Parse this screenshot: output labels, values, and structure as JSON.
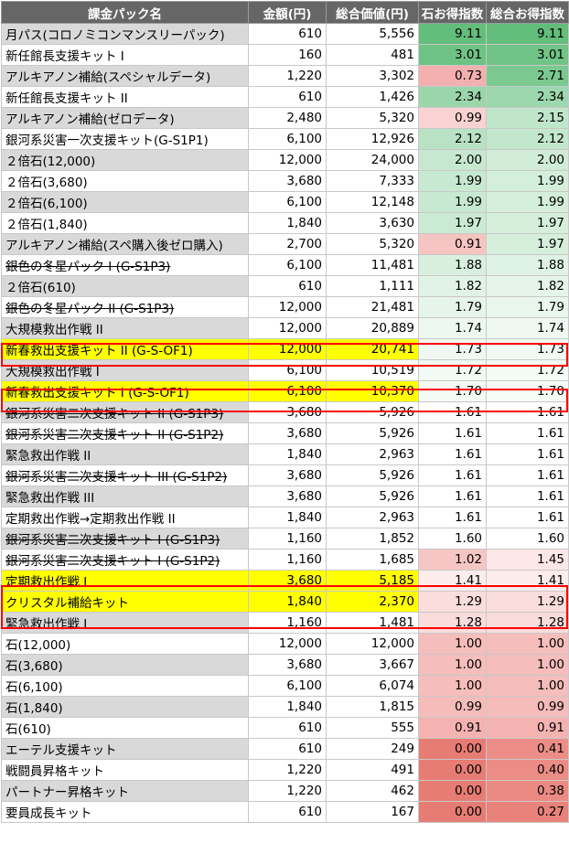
{
  "headers": [
    "課金パック名",
    "金額(円)",
    "総合価値(円)",
    "石お得指数",
    "総合お得指数"
  ],
  "rows": [
    {
      "name": "月パス(コロノミコンマンスリーパック)",
      "price": "610",
      "total": "5,556",
      "stone": "9.11",
      "all": "9.11",
      "shade": "gray",
      "strike": false,
      "highlight": false,
      "stone_color": "#63be7b",
      "all_color": "#63be7b"
    },
    {
      "name": "新任館長支援キット I",
      "price": "160",
      "total": "481",
      "stone": "3.01",
      "all": "3.01",
      "shade": "white",
      "strike": false,
      "highlight": false,
      "stone_color": "#6ec384",
      "all_color": "#6fc486"
    },
    {
      "name": "アルキアノン補給(スペシャルデータ)",
      "price": "1,220",
      "total": "3,302",
      "stone": "0.73",
      "all": "2.71",
      "shade": "gray",
      "strike": false,
      "highlight": false,
      "stone_color": "#f3b0ae",
      "all_color": "#7bc991"
    },
    {
      "name": "新任館長支援キット II",
      "price": "610",
      "total": "1,426",
      "stone": "2.34",
      "all": "2.34",
      "shade": "white",
      "strike": false,
      "highlight": false,
      "stone_color": "#9bd6ab",
      "all_color": "#9dd7ad"
    },
    {
      "name": "アルキアノン補給(ゼロデータ)",
      "price": "2,480",
      "total": "5,320",
      "stone": "0.99",
      "all": "2.15",
      "shade": "gray",
      "strike": false,
      "highlight": false,
      "stone_color": "#f8d3d1",
      "all_color": "#bfe6c9"
    },
    {
      "name": "銀河系災害一次支援キット(G-S1P1)",
      "price": "6,100",
      "total": "12,926",
      "stone": "2.12",
      "all": "2.12",
      "shade": "white",
      "strike": false,
      "highlight": false,
      "stone_color": "#b8e2c3",
      "all_color": "#c3e7cc"
    },
    {
      "name": "２倍石(12,000)",
      "price": "12,000",
      "total": "24,000",
      "stone": "2.00",
      "all": "2.00",
      "shade": "gray",
      "strike": false,
      "highlight": false,
      "stone_color": "#c6e8cf",
      "all_color": "#d0ecd7"
    },
    {
      "name": "２倍石(3,680)",
      "price": "3,680",
      "total": "7,333",
      "stone": "1.99",
      "all": "1.99",
      "shade": "white",
      "strike": false,
      "highlight": false,
      "stone_color": "#c8e9d1",
      "all_color": "#d3eeda"
    },
    {
      "name": "２倍石(6,100)",
      "price": "6,100",
      "total": "12,148",
      "stone": "1.99",
      "all": "1.99",
      "shade": "gray",
      "strike": false,
      "highlight": false,
      "stone_color": "#c8e9d1",
      "all_color": "#d3eeda"
    },
    {
      "name": "２倍石(1,840)",
      "price": "1,840",
      "total": "3,630",
      "stone": "1.97",
      "all": "1.97",
      "shade": "white",
      "strike": false,
      "highlight": false,
      "stone_color": "#cbead3",
      "all_color": "#d5efdb"
    },
    {
      "name": "アルキアノン補給(スペ購入後ゼロ購入)",
      "price": "2,700",
      "total": "5,320",
      "stone": "0.91",
      "all": "1.97",
      "shade": "gray",
      "strike": false,
      "highlight": false,
      "stone_color": "#f6c4c2",
      "all_color": "#d5efdb"
    },
    {
      "name": "銀色の冬星パック I (G-S1P3)",
      "price": "6,100",
      "total": "11,481",
      "stone": "1.88",
      "all": "1.88",
      "shade": "white",
      "strike": true,
      "highlight": false,
      "stone_color": "#d8efde",
      "all_color": "#def3e4"
    },
    {
      "name": "２倍石(610)",
      "price": "610",
      "total": "1,111",
      "stone": "1.82",
      "all": "1.82",
      "shade": "gray",
      "strike": false,
      "highlight": false,
      "stone_color": "#e1f3e6",
      "all_color": "#e5f5ea"
    },
    {
      "name": "銀色の冬星パック II (G-S1P3)",
      "price": "12,000",
      "total": "21,481",
      "stone": "1.79",
      "all": "1.79",
      "shade": "white",
      "strike": true,
      "highlight": false,
      "stone_color": "#e6f5ea",
      "all_color": "#e9f7ed"
    },
    {
      "name": "大規模救出作戦 II",
      "price": "12,000",
      "total": "20,889",
      "stone": "1.74",
      "all": "1.74",
      "shade": "gray",
      "strike": false,
      "highlight": false,
      "stone_color": "#edf8f0",
      "all_color": "#eff9f2"
    },
    {
      "name": "新春救出支援キット II (G-S-OF1)",
      "price": "12,000",
      "total": "20,741",
      "stone": "1.73",
      "all": "1.73",
      "shade": "white",
      "strike": false,
      "highlight": true,
      "stone_color": "#eff9f2",
      "all_color": "#f0faf3"
    },
    {
      "name": "大規模救出作戦 I",
      "price": "6,100",
      "total": "10,519",
      "stone": "1.72",
      "all": "1.72",
      "shade": "gray",
      "strike": false,
      "highlight": false,
      "stone_color": "#f1faf4",
      "all_color": "#f2fbf5"
    },
    {
      "name": "新春救出支援キット I (G-S-OF1)",
      "price": "6,100",
      "total": "10,370",
      "stone": "1.70",
      "all": "1.70",
      "shade": "white",
      "strike": false,
      "highlight": true,
      "stone_color": "#f4fbf6",
      "all_color": "#f5fcf7"
    },
    {
      "name": "銀河系災害二次支援キット II (G-S1P3)",
      "price": "3,680",
      "total": "5,926",
      "stone": "1.61",
      "all": "1.61",
      "shade": "gray",
      "strike": true,
      "highlight": false,
      "stone_color": "#ffffff",
      "all_color": "#ffffff"
    },
    {
      "name": "銀河系災害二次支援キット II (G-S1P2)",
      "price": "3,680",
      "total": "5,926",
      "stone": "1.61",
      "all": "1.61",
      "shade": "white",
      "strike": true,
      "highlight": false,
      "stone_color": "#ffffff",
      "all_color": "#ffffff"
    },
    {
      "name": "緊急救出作戦 II",
      "price": "1,840",
      "total": "2,963",
      "stone": "1.61",
      "all": "1.61",
      "shade": "gray",
      "strike": false,
      "highlight": false,
      "stone_color": "#ffffff",
      "all_color": "#ffffff"
    },
    {
      "name": "銀河系災害二次支援キット III (G-S1P2)",
      "price": "3,680",
      "total": "5,926",
      "stone": "1.61",
      "all": "1.61",
      "shade": "white",
      "strike": true,
      "highlight": false,
      "stone_color": "#ffffff",
      "all_color": "#ffffff"
    },
    {
      "name": "緊急救出作戦 III",
      "price": "3,680",
      "total": "5,926",
      "stone": "1.61",
      "all": "1.61",
      "shade": "gray",
      "strike": false,
      "highlight": false,
      "stone_color": "#ffffff",
      "all_color": "#ffffff"
    },
    {
      "name": "定期救出作戦→定期救出作戦 II",
      "price": "1,840",
      "total": "2,963",
      "stone": "1.61",
      "all": "1.61",
      "shade": "white",
      "strike": false,
      "highlight": false,
      "stone_color": "#ffffff",
      "all_color": "#ffffff"
    },
    {
      "name": "銀河系災害二次支援キット I (G-S1P3)",
      "price": "1,160",
      "total": "1,852",
      "stone": "1.60",
      "all": "1.60",
      "shade": "gray",
      "strike": true,
      "highlight": false,
      "stone_color": "#ffffff",
      "all_color": "#ffffff"
    },
    {
      "name": "銀河系災害二次支援キット I (G-S1P2)",
      "price": "1,160",
      "total": "1,685",
      "stone": "1.02",
      "all": "1.45",
      "shade": "white",
      "strike": true,
      "highlight": false,
      "stone_color": "#f6c6c4",
      "all_color": "#fde7e6"
    },
    {
      "name": "定期救出作戦 I",
      "price": "3,680",
      "total": "5,185",
      "stone": "1.41",
      "all": "1.41",
      "shade": "gray",
      "strike": false,
      "highlight": true,
      "stone_color": "#fdecec",
      "all_color": "#fdecec"
    },
    {
      "name": "クリスタル補給キット",
      "price": "1,840",
      "total": "2,370",
      "stone": "1.29",
      "all": "1.29",
      "shade": "white",
      "strike": false,
      "highlight": true,
      "stone_color": "#fadedd",
      "all_color": "#fadedd"
    },
    {
      "name": "緊急救出作戦 I",
      "price": "1,160",
      "total": "1,481",
      "stone": "1.28",
      "all": "1.28",
      "shade": "gray",
      "strike": false,
      "highlight": false,
      "stone_color": "#f9dcdb",
      "all_color": "#f9dcdb"
    },
    {
      "name": "石(12,000)",
      "price": "12,000",
      "total": "12,000",
      "stone": "1.00",
      "all": "1.00",
      "shade": "white",
      "strike": false,
      "highlight": false,
      "stone_color": "#f5bdbb",
      "all_color": "#f5bdbb"
    },
    {
      "name": "石(3,680)",
      "price": "3,680",
      "total": "3,667",
      "stone": "1.00",
      "all": "1.00",
      "shade": "gray",
      "strike": false,
      "highlight": false,
      "stone_color": "#f5bdbb",
      "all_color": "#f5bdbb"
    },
    {
      "name": "石(6,100)",
      "price": "6,100",
      "total": "6,074",
      "stone": "1.00",
      "all": "1.00",
      "shade": "white",
      "strike": false,
      "highlight": false,
      "stone_color": "#f5bdbb",
      "all_color": "#f5bdbb"
    },
    {
      "name": "石(1,840)",
      "price": "1,840",
      "total": "1,815",
      "stone": "0.99",
      "all": "0.99",
      "shade": "gray",
      "strike": false,
      "highlight": false,
      "stone_color": "#f5bcba",
      "all_color": "#f5bcba"
    },
    {
      "name": "石(610)",
      "price": "610",
      "total": "555",
      "stone": "0.91",
      "all": "0.91",
      "shade": "white",
      "strike": false,
      "highlight": false,
      "stone_color": "#f4b3b1",
      "all_color": "#f4b3b1"
    },
    {
      "name": "エーテル支援キット",
      "price": "610",
      "total": "249",
      "stone": "0.00",
      "all": "0.41",
      "shade": "gray",
      "strike": false,
      "highlight": false,
      "stone_color": "#e67c73",
      "all_color": "#ec8e87"
    },
    {
      "name": "戦闘員昇格キット",
      "price": "1,220",
      "total": "491",
      "stone": "0.00",
      "all": "0.40",
      "shade": "white",
      "strike": false,
      "highlight": false,
      "stone_color": "#e67c73",
      "all_color": "#eb8c85"
    },
    {
      "name": "パートナー昇格キット",
      "price": "1,220",
      "total": "462",
      "stone": "0.00",
      "all": "0.38",
      "shade": "gray",
      "strike": false,
      "highlight": false,
      "stone_color": "#e67c73",
      "all_color": "#eb8a83"
    },
    {
      "name": "要員成長キット",
      "price": "610",
      "total": "167",
      "stone": "0.00",
      "all": "0.27",
      "shade": "white",
      "strike": false,
      "highlight": false,
      "stone_color": "#e67c73",
      "all_color": "#e9827a"
    }
  ]
}
